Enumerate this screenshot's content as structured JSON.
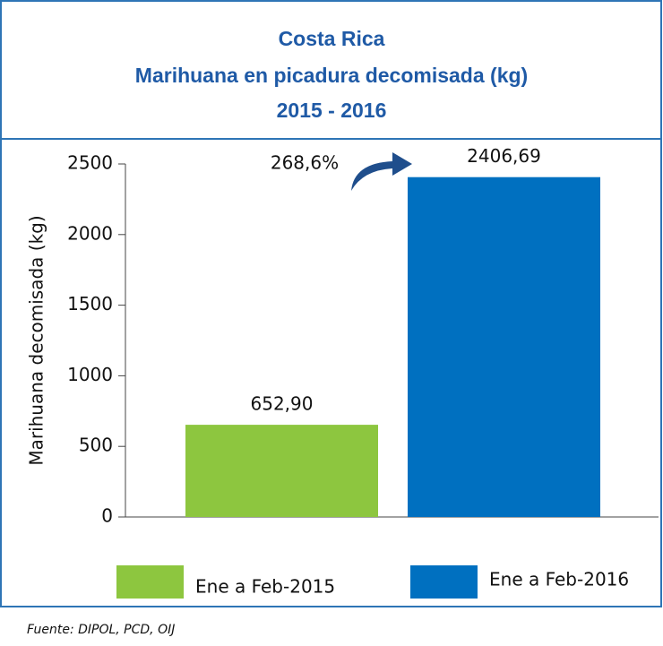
{
  "chart_data": {
    "type": "bar",
    "title": [
      "Costa Rica",
      "Marihuana en picadura decomisada (kg)",
      "2015 - 2016"
    ],
    "ylabel": "Marihuana decomisada (kg)",
    "categories": [
      "Ene a Feb-2015",
      "Ene a Feb-2016"
    ],
    "values": [
      652.9,
      2406.69
    ],
    "value_labels": [
      "652,90",
      "2406,69"
    ],
    "colors": [
      "#8dc63f",
      "#0070c0"
    ],
    "annotation": "268,6%",
    "ylim": [
      0,
      2500
    ],
    "yticks": [
      0,
      500,
      1000,
      1500,
      2000,
      2500
    ],
    "source": "Fuente: DIPOL, PCD, OIJ"
  }
}
